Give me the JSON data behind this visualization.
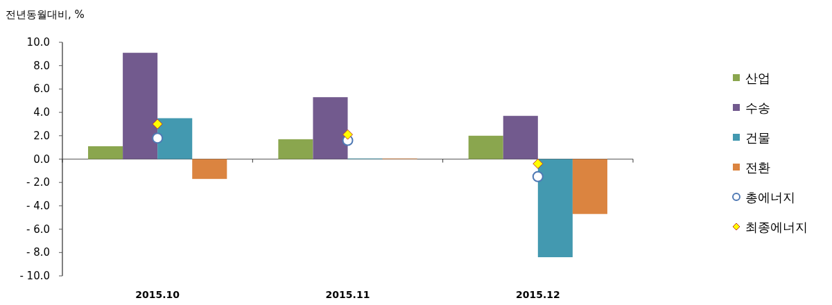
{
  "chart_data": {
    "type": "bar",
    "ylabel": "전년동월대비, %",
    "categories": [
      "2015.10",
      "2015.11",
      "2015.12"
    ],
    "series": [
      {
        "name": "산업",
        "color": "#8aa64e",
        "values": [
          1.1,
          1.7,
          2.0
        ]
      },
      {
        "name": "수송",
        "color": "#725a8e",
        "values": [
          9.1,
          5.3,
          3.7
        ]
      },
      {
        "name": "건물",
        "color": "#4399b0",
        "values": [
          3.5,
          0.05,
          -8.4
        ]
      },
      {
        "name": "전환",
        "color": "#db8440",
        "values": [
          -1.7,
          0.05,
          -4.7
        ]
      },
      {
        "name": "총에너지",
        "type": "scatter",
        "marker": "circle",
        "color": "#4f79b4",
        "x": [
          "2015.10",
          "2015.11",
          "2015.12"
        ],
        "values": [
          1.8,
          1.6,
          -1.5
        ]
      },
      {
        "name": "최종에너지",
        "type": "scatter",
        "marker": "diamond",
        "color": "#ffff00",
        "x": [
          "2015.10",
          "2015.11",
          "2015.12"
        ],
        "values": [
          3.0,
          2.1,
          -0.4
        ]
      }
    ],
    "ylim": [
      -10,
      10
    ],
    "yticks": [
      {
        "value": -10,
        "label": "- 10.0"
      },
      {
        "value": -8,
        "label": "- 8.0"
      },
      {
        "value": -6,
        "label": "- 6.0"
      },
      {
        "value": -4,
        "label": "- 4.0"
      },
      {
        "value": -2,
        "label": "- 2.0"
      },
      {
        "value": 0,
        "label": "0.0"
      },
      {
        "value": 2,
        "label": "2.0"
      },
      {
        "value": 4,
        "label": "4.0"
      },
      {
        "value": 6,
        "label": "6.0"
      },
      {
        "value": 8,
        "label": "8.0"
      },
      {
        "value": 10,
        "label": "10.0"
      }
    ],
    "legend": "right"
  }
}
